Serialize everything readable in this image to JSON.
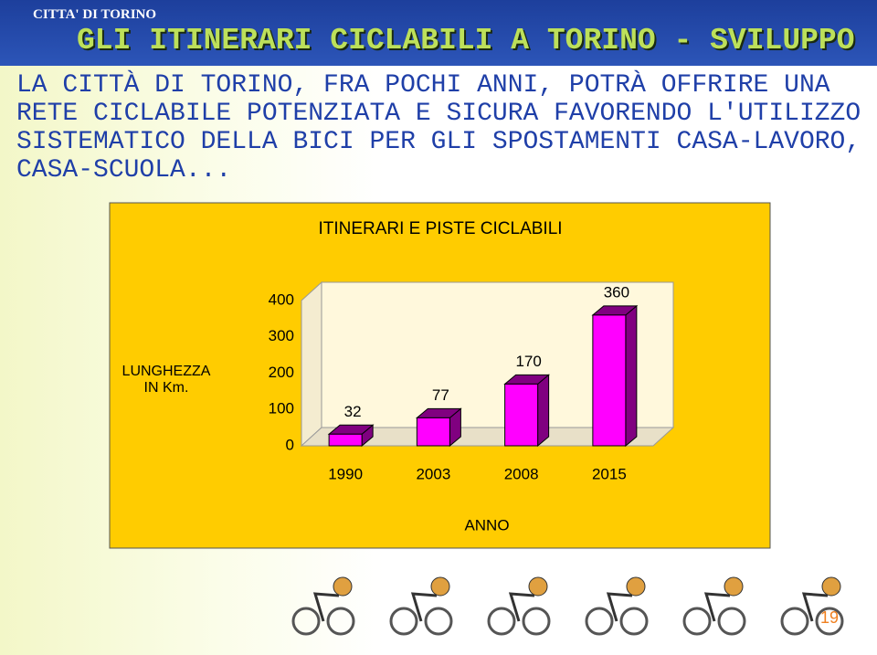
{
  "logo_text": "CITTA' DI TORINO",
  "slide_title": "GLI ITINERARI CICLABILI A TORINO - SVILUPPO",
  "body_lines": [
    "LA CITTÀ DI TORINO, FRA POCHI ANNI, POTRÀ OFFRIRE UNA",
    "RETE CICLABILE POTENZIATA E SICURA FAVORENDO L'UTILIZZO",
    "SISTEMATICO DELLA BICI PER GLI SPOSTAMENTI CASA-LAVORO,",
    "CASA-SCUOLA..."
  ],
  "page_number": "19",
  "chart_data": {
    "type": "bar",
    "title": "ITINERARI E PISTE CICLABILI",
    "x_label": "ANNO",
    "y_label": "LUNGHEZZA IN Km.",
    "categories": [
      "1990",
      "2003",
      "2008",
      "2015"
    ],
    "values": [
      32,
      77,
      170,
      360
    ],
    "color": "#ff00ff",
    "side_color": "#800080",
    "background": "#ffcc00",
    "ylim": [
      0,
      400
    ],
    "yticks": [
      0,
      100,
      200,
      300,
      400
    ]
  }
}
